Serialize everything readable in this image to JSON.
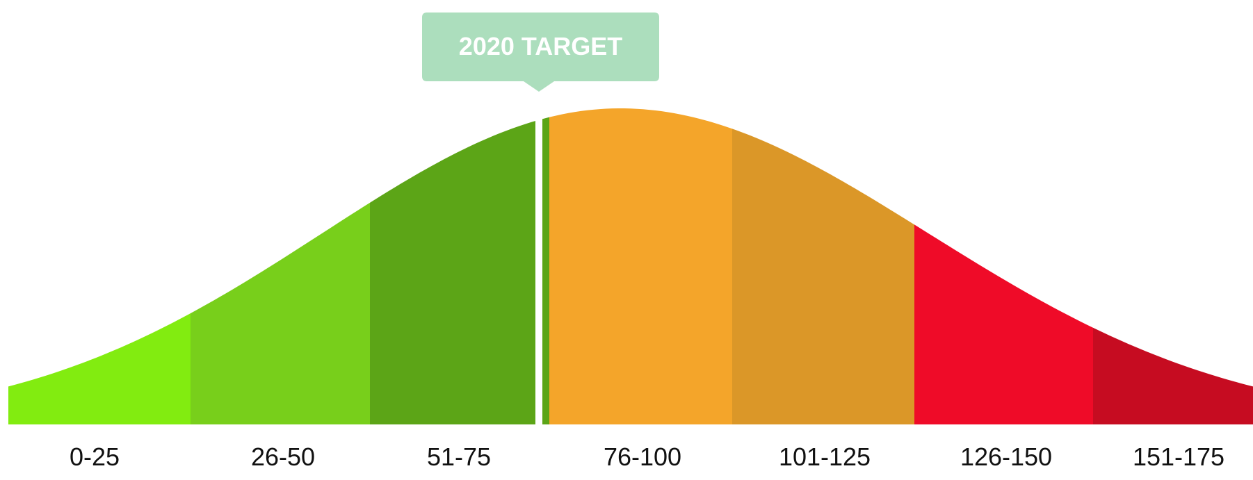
{
  "chart_data": {
    "type": "area",
    "title": "",
    "xlabel": "",
    "ylabel": "",
    "grid": false,
    "legend": "none",
    "categories": [
      "0-25",
      "26-50",
      "51-75",
      "76-100",
      "101-125",
      "126-150",
      "151-175"
    ],
    "band_colors": [
      "#82ec10",
      "#78cf1b",
      "#5ca517",
      "#f4a52a",
      "#db9728",
      "#ef0b28",
      "#c60c21"
    ],
    "curve": {
      "x_range": [
        0,
        175
      ],
      "peak_x": 86,
      "relative_height_at_edges": [
        0.12,
        0.12
      ],
      "relative_height_at_peak": 1.0
    },
    "target": {
      "label": "2020 TARGET",
      "x": 75,
      "callout_color": "#acdebd",
      "line_color": "#ffffff"
    }
  }
}
